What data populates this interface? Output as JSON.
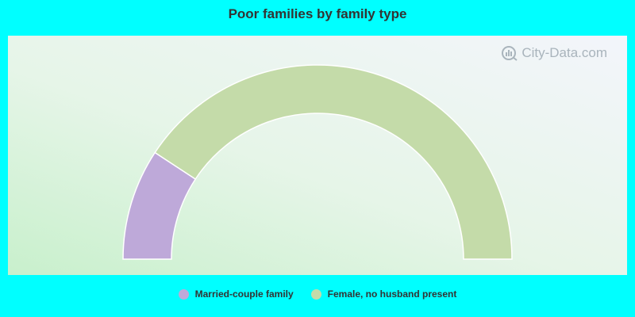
{
  "chart_data": {
    "type": "pie",
    "subtype": "half-donut",
    "title": "Poor families by family type",
    "categories": [
      "Married-couple family",
      "Female, no husband present"
    ],
    "values": [
      18.5,
      81.5
    ],
    "colors": [
      "#bea9d9",
      "#c4dba9"
    ],
    "legend_position": "bottom"
  },
  "watermark": {
    "text": "City-Data.com"
  },
  "legend": [
    {
      "label": "Married-couple family",
      "color": "#bea9d9"
    },
    {
      "label": "Female, no husband present",
      "color": "#c4dba9"
    }
  ]
}
